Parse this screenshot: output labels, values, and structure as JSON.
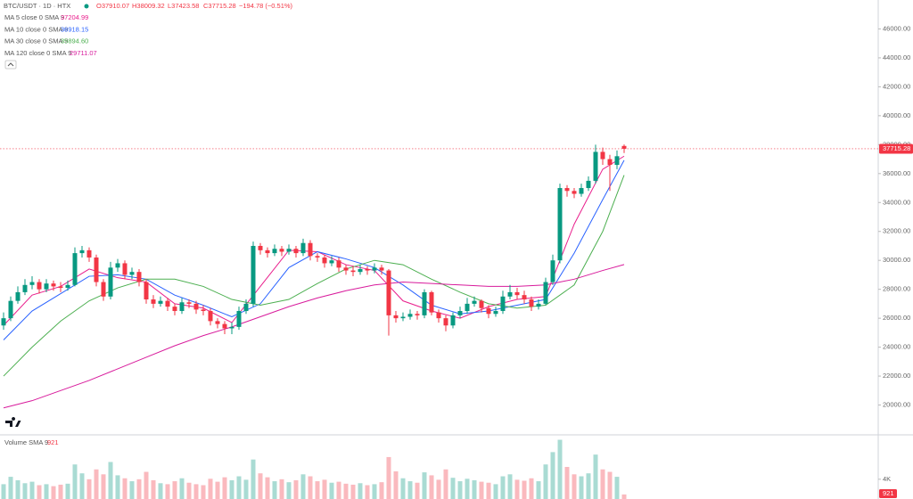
{
  "chart_data": {
    "type": "candlestick",
    "title": "BTC/USDT · 1D · HTX",
    "header_open": "O37910.07",
    "header_high": "H38009.32",
    "header_low": "L37423.58",
    "header_close": "C37715.28",
    "header_change": "−194.78 (−0.51%)",
    "up_color": "#089981",
    "down_color": "#f23645",
    "open": [
      25500,
      26000,
      27200,
      27800,
      28300,
      28500,
      28000,
      28400,
      28200,
      28100,
      28300,
      30500,
      30700,
      30200,
      28500,
      27500,
      29500,
      29800,
      29000,
      29200,
      28500,
      27300,
      27000,
      27200,
      26800,
      26500,
      27100,
      27000,
      26600,
      26500,
      25800,
      25600,
      25300,
      25400,
      26500,
      27000,
      31000,
      30700,
      30500,
      30800,
      30600,
      30800,
      30500,
      31200,
      30300,
      30200,
      29800,
      30000,
      29500,
      29300,
      29200,
      29400,
      29300,
      29500,
      29300,
      26200,
      26000,
      26100,
      26300,
      26200,
      27800,
      26400,
      26000,
      25500,
      26200,
      26500,
      27000,
      27200,
      26700,
      26300,
      26500,
      27500,
      27800,
      27600,
      27300,
      26800,
      27000,
      28500,
      30000,
      35000,
      34800,
      34600,
      35000,
      35500,
      37500,
      37000,
      36600,
      37910.07
    ],
    "high": [
      26400,
      27500,
      28200,
      28700,
      28900,
      28700,
      28700,
      28600,
      28500,
      28600,
      30900,
      31000,
      30900,
      30400,
      28700,
      29900,
      30100,
      30000,
      29500,
      29400,
      28700,
      27600,
      27500,
      27400,
      27000,
      27400,
      27300,
      27200,
      26900,
      26700,
      26000,
      25800,
      25700,
      26800,
      27300,
      31300,
      31200,
      30900,
      31100,
      31000,
      31100,
      31000,
      31500,
      31400,
      30500,
      30400,
      30300,
      30200,
      29700,
      29600,
      29700,
      29600,
      29800,
      29700,
      29400,
      26500,
      26400,
      26600,
      26500,
      28000,
      27900,
      26600,
      26200,
      26400,
      26800,
      27400,
      27500,
      27300,
      26900,
      26800,
      27900,
      28300,
      28100,
      27900,
      27500,
      27300,
      28800,
      30400,
      35300,
      35200,
      35000,
      35300,
      35800,
      38000,
      37800,
      37300,
      37600,
      38009.32
    ],
    "low": [
      25200,
      25800,
      27000,
      27600,
      28000,
      27700,
      27800,
      27900,
      27800,
      27900,
      28200,
      30200,
      29900,
      28200,
      27200,
      27300,
      29200,
      28700,
      28700,
      28200,
      27000,
      26700,
      26800,
      26500,
      26200,
      26300,
      26700,
      26300,
      26200,
      25500,
      25300,
      24900,
      24900,
      25200,
      26300,
      26800,
      30400,
      30200,
      30300,
      30300,
      30400,
      30200,
      30300,
      30000,
      29900,
      29500,
      29600,
      29200,
      29000,
      28900,
      29000,
      29000,
      29100,
      29000,
      24800,
      25700,
      25800,
      25900,
      25900,
      26000,
      26200,
      25700,
      25100,
      25300,
      26000,
      26300,
      26800,
      26400,
      26000,
      26100,
      26300,
      27300,
      27300,
      27000,
      26500,
      26600,
      26900,
      28300,
      29800,
      34400,
      34300,
      34400,
      34800,
      35300,
      36600,
      34800,
      36300,
      37423.58
    ],
    "close": [
      26000,
      27200,
      27800,
      28300,
      28500,
      28000,
      28400,
      28200,
      28100,
      28300,
      30500,
      30700,
      30200,
      28500,
      27500,
      29500,
      29800,
      29000,
      29200,
      28500,
      27300,
      27000,
      27200,
      26800,
      26500,
      27100,
      27000,
      26600,
      26500,
      25800,
      25600,
      25300,
      25400,
      26500,
      27000,
      31000,
      30700,
      30500,
      30800,
      30600,
      30800,
      30500,
      31200,
      30300,
      30200,
      29800,
      30000,
      29500,
      29300,
      29200,
      29400,
      29300,
      29500,
      29300,
      26200,
      26000,
      26100,
      26300,
      26200,
      27800,
      26400,
      26000,
      25500,
      26200,
      26500,
      27000,
      27200,
      26700,
      26300,
      26500,
      27500,
      27800,
      27600,
      27300,
      26800,
      27000,
      28500,
      30000,
      35000,
      34800,
      34600,
      35000,
      35500,
      37500,
      37000,
      36600,
      37200,
      37715.28
    ],
    "last_price_label": "37715.28",
    "ylim": [
      18000,
      48000
    ],
    "yticks": [
      {
        "value": 20000,
        "label": "20000.00"
      },
      {
        "value": 22000,
        "label": "22000.00"
      },
      {
        "value": 24000,
        "label": "24000.00"
      },
      {
        "value": 26000,
        "label": "26000.00"
      },
      {
        "value": 28000,
        "label": "28000.00"
      },
      {
        "value": 30000,
        "label": "30000.00"
      },
      {
        "value": 32000,
        "label": "32000.00"
      },
      {
        "value": 34000,
        "label": "34000.00"
      },
      {
        "value": 36000,
        "label": "36000.00"
      },
      {
        "value": 38000,
        "label": "38000.00"
      },
      {
        "value": 40000,
        "label": "40000.00"
      },
      {
        "value": 42000,
        "label": "42000.00"
      },
      {
        "value": 44000,
        "label": "44000.00"
      },
      {
        "value": 46000,
        "label": "46000.00"
      }
    ],
    "ma_x": [
      0,
      4,
      8,
      12,
      16,
      20,
      24,
      28,
      32,
      36,
      40,
      44,
      48,
      52,
      56,
      60,
      64,
      68,
      72,
      76,
      80,
      84,
      87
    ],
    "series": [
      {
        "name": "MA 5 close 0 SMA 9",
        "color": "#e91e8c",
        "last_label": "37204.99",
        "values": [
          25500,
          27600,
          28200,
          29400,
          28800,
          28500,
          27000,
          26700,
          25700,
          28200,
          30700,
          30600,
          29700,
          29300,
          27200,
          26500,
          26000,
          26800,
          27300,
          27500,
          32500,
          36300,
          37204.99
        ]
      },
      {
        "name": "MA 10 close 0 SMA 9",
        "color": "#2962ff",
        "last_label": "36918.15",
        "values": [
          24500,
          26500,
          27700,
          28900,
          29000,
          28700,
          27600,
          26900,
          26100,
          27000,
          29500,
          30600,
          30100,
          29500,
          28300,
          26900,
          26300,
          26500,
          26900,
          27300,
          30500,
          34200,
          36918.15
        ]
      },
      {
        "name": "MA 30 close 0 SMA 9",
        "color": "#4caf50",
        "last_label": "35894.60",
        "values": [
          22000,
          24000,
          25800,
          27200,
          28100,
          28700,
          28700,
          28200,
          27300,
          26900,
          27300,
          28400,
          29400,
          30000,
          29700,
          28700,
          27800,
          27000,
          26700,
          26900,
          28300,
          32000,
          35894.6
        ]
      },
      {
        "name": "MA 120 close 0 SMA 9",
        "color": "#d81b9c",
        "last_label": "29711.07",
        "values": [
          19800,
          20300,
          21000,
          21700,
          22500,
          23300,
          24100,
          24800,
          25400,
          26100,
          26800,
          27400,
          27900,
          28300,
          28500,
          28400,
          28300,
          28200,
          28200,
          28300,
          28700,
          29300,
          29711.07
        ]
      }
    ],
    "volume_title": "Volume SMA 9",
    "volume_last_label": "921",
    "volume": [
      3000,
      4500,
      3800,
      3200,
      3500,
      2800,
      3000,
      2600,
      2900,
      3100,
      7000,
      5200,
      4000,
      6000,
      5000,
      7500,
      4800,
      4200,
      3600,
      4000,
      5500,
      3800,
      3200,
      3000,
      3600,
      4200,
      3300,
      3000,
      2800,
      4100,
      3500,
      4400,
      3800,
      4600,
      3900,
      8000,
      5200,
      4400,
      3600,
      4000,
      3400,
      3800,
      5000,
      4600,
      3600,
      3900,
      3300,
      3500,
      3100,
      2900,
      3200,
      2800,
      3000,
      3400,
      8500,
      5600,
      4200,
      3600,
      3300,
      5400,
      4800,
      3900,
      6000,
      4300,
      3600,
      4100,
      3800,
      3500,
      3300,
      3000,
      4600,
      5000,
      3900,
      3700,
      4200,
      3600,
      7000,
      9500,
      12000,
      6500,
      5000,
      4600,
      5200,
      9000,
      6000,
      5500,
      4500,
      921
    ],
    "volume_ylim": [
      0,
      13000
    ],
    "volume_yticks": [
      {
        "value": 4000,
        "label": "4K"
      }
    ]
  }
}
